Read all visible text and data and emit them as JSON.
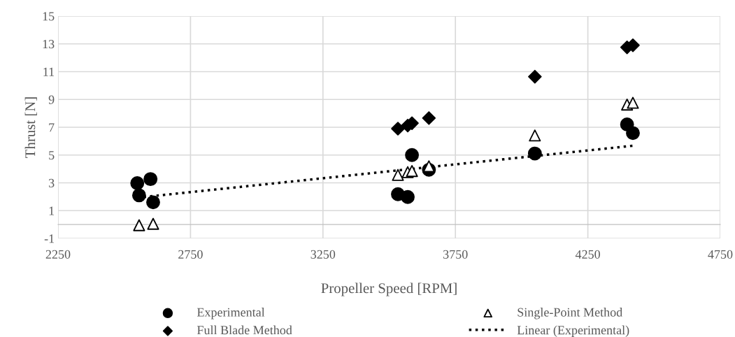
{
  "chart_data": {
    "type": "scatter",
    "xlabel": "Propeller Speed [RPM]",
    "ylabel": "Thrust [N]",
    "xlim": [
      2250,
      4750
    ],
    "xticks": [
      2250,
      2750,
      3250,
      3750,
      4250,
      4750
    ],
    "ylim": [
      -1,
      15
    ],
    "yticks": [
      -1,
      1,
      3,
      5,
      7,
      9,
      11,
      13,
      15
    ],
    "grid": true,
    "legend": "bottom",
    "series": [
      {
        "name": "Experimental",
        "color": "#000000",
        "marker": "circle",
        "x": [
          2549,
          2556,
          2599,
          2609,
          3533,
          3570,
          3586,
          3650,
          4050,
          4398,
          4420
        ],
        "values": [
          2.98,
          2.1,
          3.27,
          1.6,
          2.18,
          1.98,
          5.0,
          3.94,
          5.11,
          7.2,
          6.58
        ]
      },
      {
        "name": "Single-Point Method",
        "color": "#000000",
        "marker": "triangle",
        "x": [
          2556,
          2609,
          3533,
          3570,
          3586,
          3650,
          4050,
          4398,
          4420
        ],
        "values": [
          -0.05,
          0.05,
          3.57,
          3.77,
          3.85,
          4.19,
          6.41,
          8.63,
          8.76
        ]
      },
      {
        "name": "Full Blade Method",
        "color": "#000000",
        "marker": "diamond",
        "x": [
          3533,
          3570,
          3586,
          3650,
          4050,
          4398,
          4420
        ],
        "values": [
          6.9,
          7.12,
          7.29,
          7.66,
          10.64,
          12.75,
          12.9
        ]
      },
      {
        "name": "Linear (Experimental)",
        "color": "#000000",
        "type": "line",
        "line_style": "dotted",
        "marker": "none",
        "x": [
          2549,
          4420
        ],
        "values": [
          1.93,
          5.67
        ]
      }
    ]
  }
}
